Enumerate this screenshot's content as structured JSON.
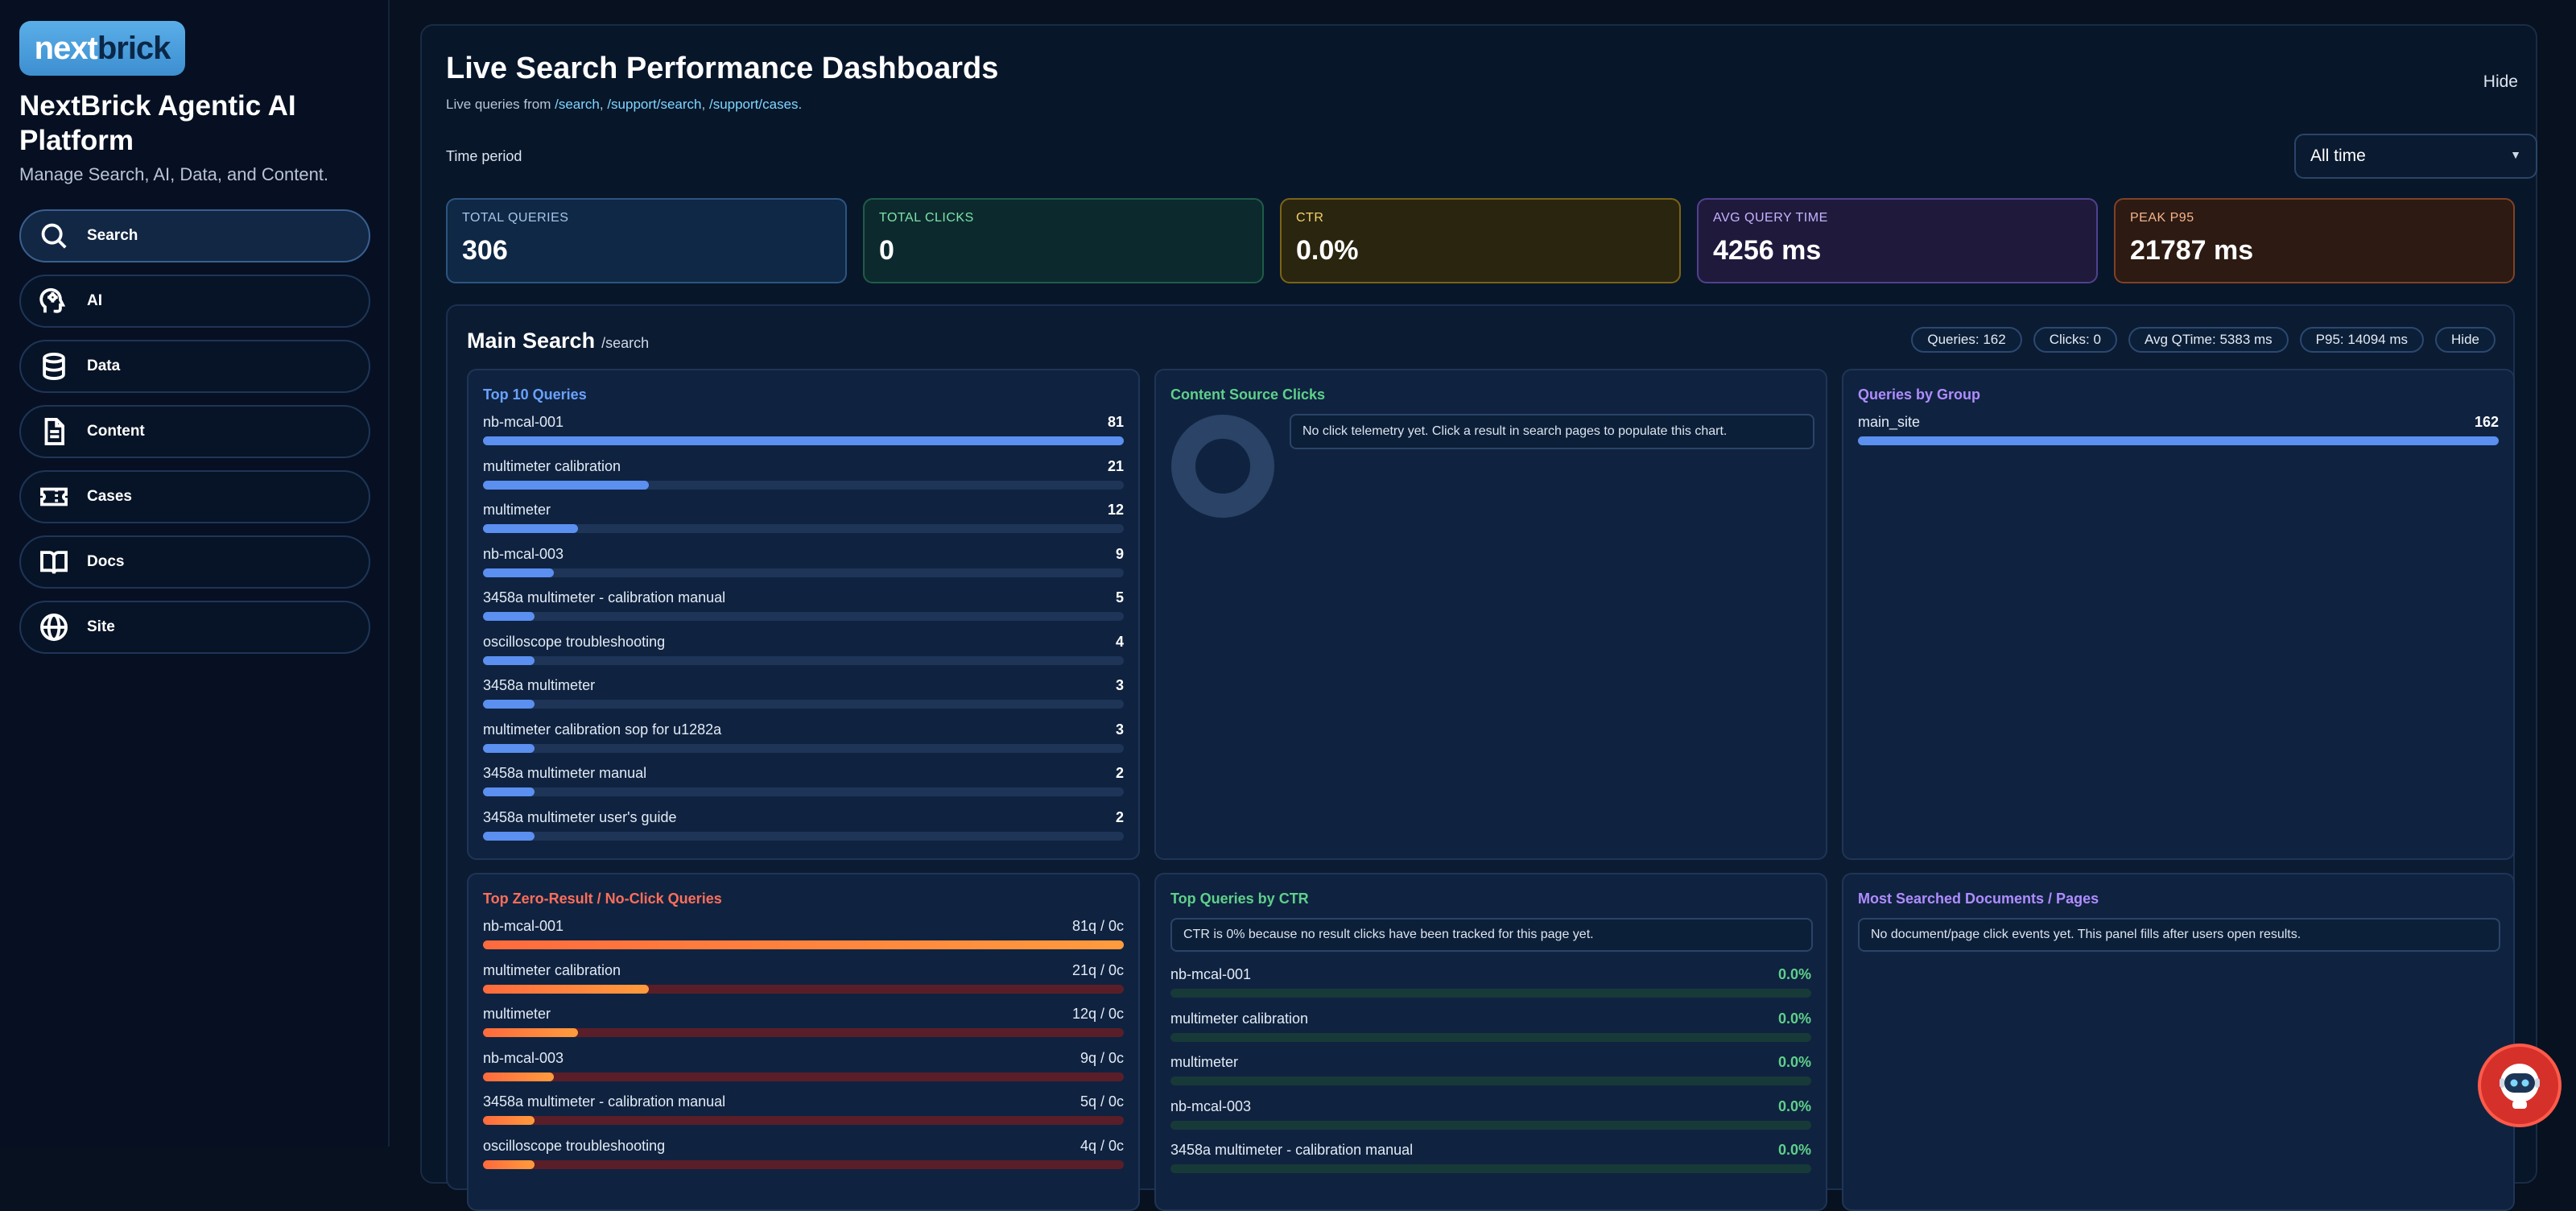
{
  "sidebar": {
    "logo_part1": "next",
    "logo_part2": "brick",
    "title": "NextBrick Agentic AI Platform",
    "subtitle": "Manage Search, AI, Data, and Content.",
    "items": [
      {
        "label": "Search",
        "icon": "search-icon"
      },
      {
        "label": "AI",
        "icon": "ai-head-icon"
      },
      {
        "label": "Data",
        "icon": "database-icon"
      },
      {
        "label": "Content",
        "icon": "document-icon"
      },
      {
        "label": "Cases",
        "icon": "ticket-icon"
      },
      {
        "label": "Docs",
        "icon": "book-icon"
      },
      {
        "label": "Site",
        "icon": "globe-icon"
      }
    ]
  },
  "header": {
    "title": "Live Search Performance Dashboards",
    "subtitle_prefix": "Live queries from",
    "path1": "/search",
    "path2": "/support/search",
    "path3": "/support/cases.",
    "hide_label": "Hide",
    "time_period_label": "Time period",
    "time_period_value": "All time"
  },
  "kpis": [
    {
      "label": "TOTAL QUERIES",
      "value": "306"
    },
    {
      "label": "TOTAL CLICKS",
      "value": "0"
    },
    {
      "label": "CTR",
      "value": "0.0%"
    },
    {
      "label": "AVG QUERY TIME",
      "value": "4256 ms"
    },
    {
      "label": "PEAK P95",
      "value": "21787 ms"
    }
  ],
  "section": {
    "title": "Main Search",
    "path": "/search",
    "chips": [
      "Queries: 162",
      "Clicks: 0",
      "Avg QTime: 5383 ms",
      "P95: 14094 ms"
    ],
    "hide_label": "Hide"
  },
  "top_queries": {
    "title": "Top 10 Queries",
    "max": 81,
    "items": [
      {
        "q": "nb-mcal-001",
        "count": 81
      },
      {
        "q": "multimeter calibration",
        "count": 21
      },
      {
        "q": "multimeter",
        "count": 12
      },
      {
        "q": "nb-mcal-003",
        "count": 9
      },
      {
        "q": "3458a multimeter - calibration manual",
        "count": 5
      },
      {
        "q": "oscilloscope troubleshooting",
        "count": 4
      },
      {
        "q": "3458a multimeter",
        "count": 3
      },
      {
        "q": "multimeter calibration sop for u1282a",
        "count": 3
      },
      {
        "q": "3458a multimeter manual",
        "count": 2
      },
      {
        "q": "3458a multimeter user's guide",
        "count": 2
      }
    ]
  },
  "content_source": {
    "title": "Content Source Clicks",
    "notice": "No click telemetry yet. Click a result in search pages to populate this chart."
  },
  "queries_by_group": {
    "title": "Queries by Group",
    "items": [
      {
        "group": "main_site",
        "count": 162
      }
    ],
    "max": 162
  },
  "zero_result": {
    "title": "Top Zero-Result / No-Click Queries",
    "max": 81,
    "items": [
      {
        "q": "nb-mcal-001",
        "count": 81,
        "label": "81q / 0c"
      },
      {
        "q": "multimeter calibration",
        "count": 21,
        "label": "21q / 0c"
      },
      {
        "q": "multimeter",
        "count": 12,
        "label": "12q / 0c"
      },
      {
        "q": "nb-mcal-003",
        "count": 9,
        "label": "9q / 0c"
      },
      {
        "q": "3458a multimeter - calibration manual",
        "count": 5,
        "label": "5q / 0c"
      },
      {
        "q": "oscilloscope troubleshooting",
        "count": 4,
        "label": "4q / 0c"
      }
    ]
  },
  "top_ctr": {
    "title": "Top Queries by CTR",
    "notice": "CTR is 0% because no result clicks have been tracked for this page yet.",
    "items": [
      {
        "q": "nb-mcal-001",
        "ctr": "0.0%"
      },
      {
        "q": "multimeter calibration",
        "ctr": "0.0%"
      },
      {
        "q": "multimeter",
        "ctr": "0.0%"
      },
      {
        "q": "nb-mcal-003",
        "ctr": "0.0%"
      },
      {
        "q": "3458a multimeter - calibration manual",
        "ctr": "0.0%"
      }
    ]
  },
  "most_searched": {
    "title": "Most Searched Documents / Pages",
    "notice": "No document/page click events yet. This panel fills after users open results."
  },
  "chat_bot": {
    "icon": "robot-icon"
  }
}
